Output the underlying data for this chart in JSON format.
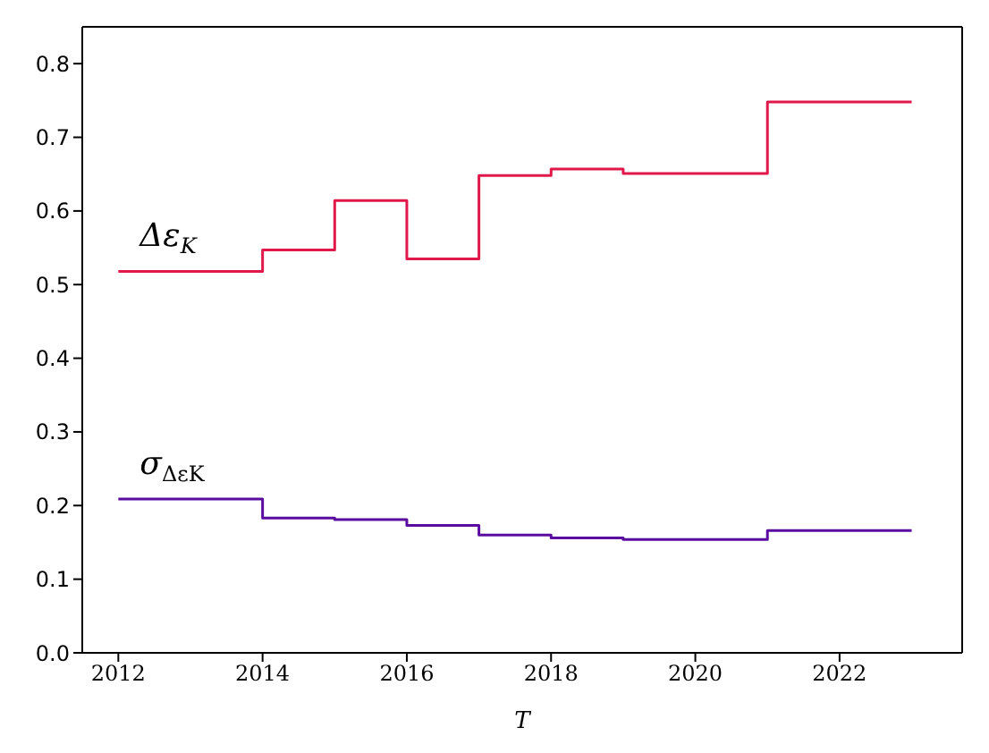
{
  "chart_data": {
    "type": "step",
    "xlabel": "T",
    "x": [
      2012,
      2014,
      2015,
      2016,
      2017,
      2018,
      2019,
      2021,
      2023
    ],
    "series": [
      {
        "name": "Δε$_{K}$",
        "color": "#e0194a",
        "values": [
          0.518,
          0.547,
          0.614,
          0.535,
          0.648,
          0.657,
          0.651,
          0.748,
          0.748
        ]
      },
      {
        "name": "σ$_{ΔεK}$",
        "color": "#5a0ca0",
        "values": [
          0.209,
          0.183,
          0.181,
          0.173,
          0.16,
          0.156,
          0.154,
          0.166,
          0.166
        ]
      }
    ],
    "xlim": [
      2011.5,
      2023.7
    ],
    "xticks": [
      2012,
      2014,
      2016,
      2018,
      2020,
      2022
    ],
    "ylim": [
      0,
      0.85
    ],
    "yticks": [
      {
        "value": 0,
        "label": "0.0"
      },
      0.1,
      0.2,
      0.3,
      0.4,
      0.5,
      0.6,
      0.7,
      0.8
    ],
    "grid": false,
    "marker": "none",
    "line_style": "solid"
  }
}
